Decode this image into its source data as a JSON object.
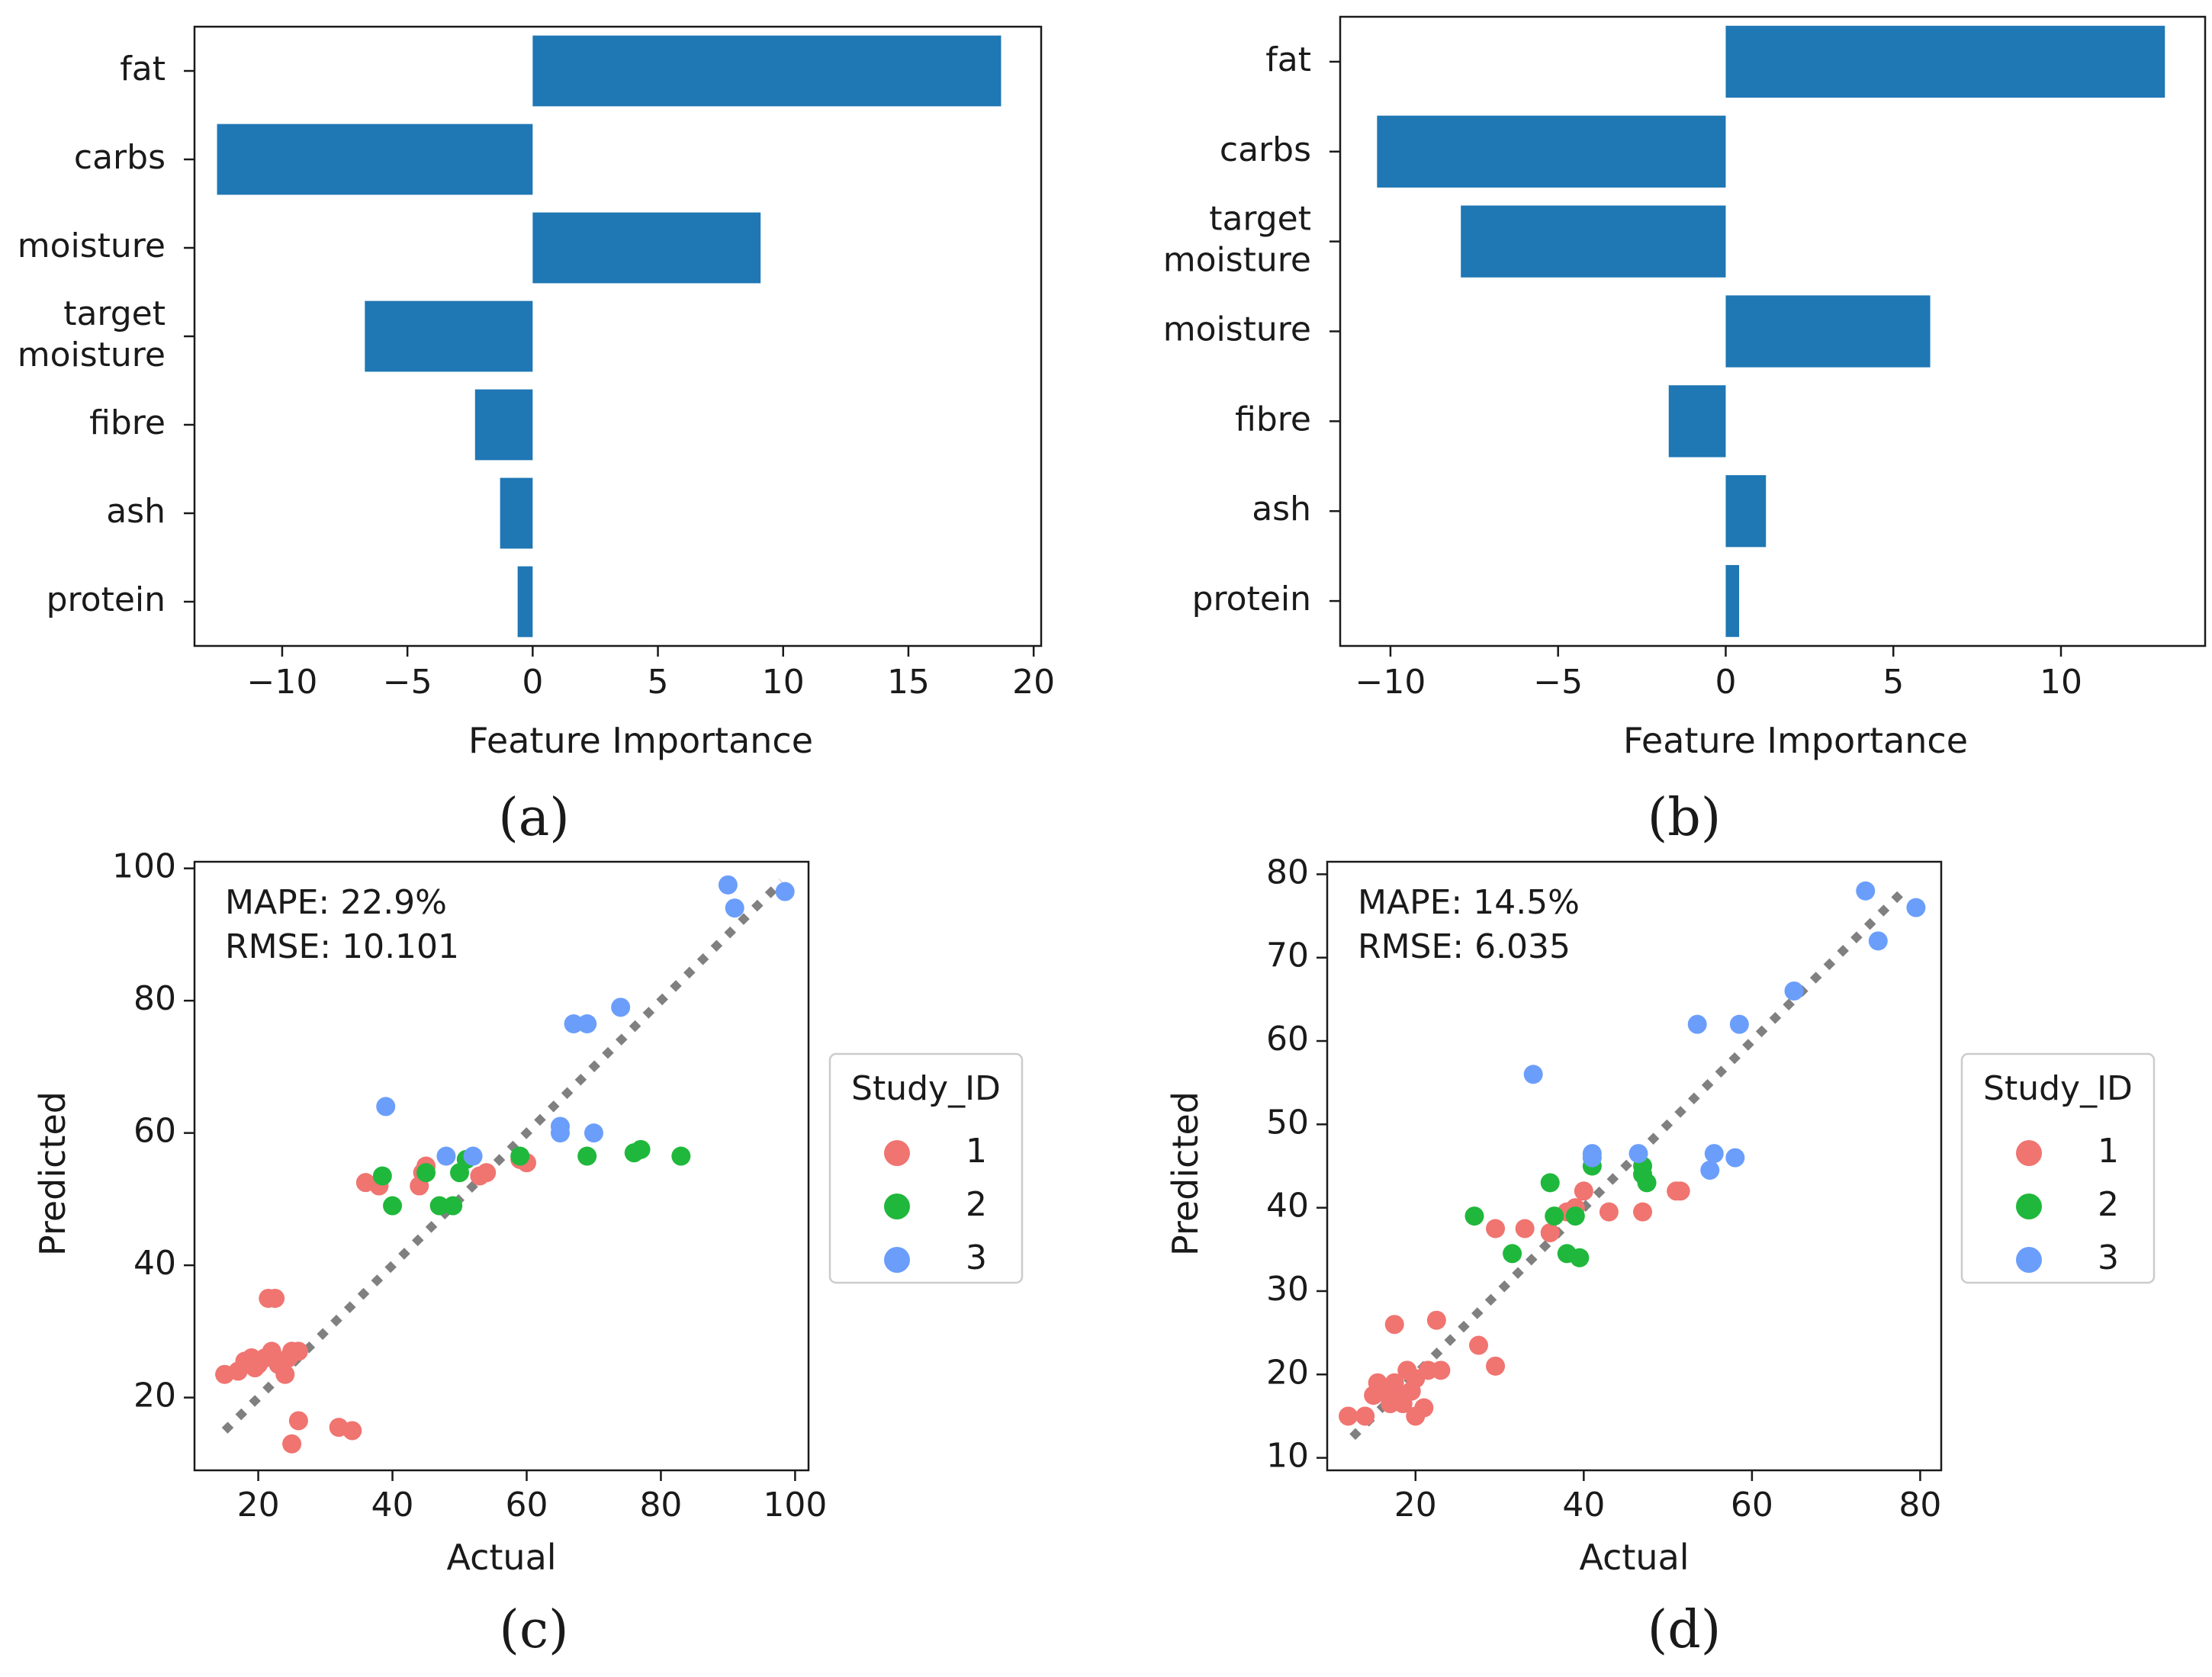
{
  "chart_data": [
    {
      "id": "a",
      "type": "bar",
      "orientation": "horizontal",
      "panel_label": "(a)",
      "xlabel": "Feature Importance",
      "ylabel": "",
      "xlim": [
        -13.5,
        20.3
      ],
      "xticks": [
        -10,
        -5,
        0,
        5,
        10,
        15,
        20
      ],
      "xtick_labels": [
        "−10",
        "−5",
        "0",
        "5",
        "10",
        "15",
        "20"
      ],
      "categories": [
        {
          "lines": [
            "fat"
          ],
          "value": 18.7
        },
        {
          "lines": [
            "carbs"
          ],
          "value": -12.6
        },
        {
          "lines": [
            "moisture"
          ],
          "value": 9.1
        },
        {
          "lines": [
            "target",
            "moisture"
          ],
          "value": -6.7
        },
        {
          "lines": [
            "fibre"
          ],
          "value": -2.3
        },
        {
          "lines": [
            "ash"
          ],
          "value": -1.3
        },
        {
          "lines": [
            "protein"
          ],
          "value": -0.6
        }
      ],
      "bar_color": "#1f77b4",
      "grid": false
    },
    {
      "id": "b",
      "type": "bar",
      "orientation": "horizontal",
      "panel_label": "(b)",
      "xlabel": "Feature Importance",
      "ylabel": "",
      "xlim": [
        -11.5,
        14.3
      ],
      "xticks": [
        -10,
        -5,
        0,
        5,
        10
      ],
      "xtick_labels": [
        "−10",
        "−5",
        "0",
        "5",
        "10"
      ],
      "categories": [
        {
          "lines": [
            "fat"
          ],
          "value": 13.1
        },
        {
          "lines": [
            "carbs"
          ],
          "value": -10.4
        },
        {
          "lines": [
            "target",
            "moisture"
          ],
          "value": -7.9
        },
        {
          "lines": [
            "moisture"
          ],
          "value": 6.1
        },
        {
          "lines": [
            "fibre"
          ],
          "value": -1.7
        },
        {
          "lines": [
            "ash"
          ],
          "value": 1.2
        },
        {
          "lines": [
            "protein"
          ],
          "value": 0.4
        }
      ],
      "bar_color": "#1f77b4",
      "grid": false
    },
    {
      "id": "c",
      "type": "scatter",
      "panel_label": "(c)",
      "xlabel": "Actual",
      "ylabel": "Predicted",
      "xlim": [
        10.5,
        102
      ],
      "ylim": [
        9,
        101
      ],
      "xticks": [
        20,
        40,
        60,
        80,
        100
      ],
      "xtick_labels": [
        "20",
        "40",
        "60",
        "80",
        "100"
      ],
      "yticks": [
        20,
        40,
        60,
        80,
        100
      ],
      "ytick_labels": [
        "20",
        "40",
        "60",
        "80",
        "100"
      ],
      "annotation": [
        "MAPE: 22.9%",
        "RMSE: 10.101"
      ],
      "legend": {
        "title": "Study_ID",
        "placement": "outside-right"
      },
      "reference_line": {
        "x": [
          15,
          98
        ],
        "y": [
          15,
          98
        ],
        "style": "dotted",
        "color": "#808080"
      },
      "series": [
        {
          "name": "1",
          "color": "#f07470",
          "points": [
            [
              15,
              23.5
            ],
            [
              17,
              24
            ],
            [
              18,
              25.5
            ],
            [
              19,
              26
            ],
            [
              19.5,
              24.5
            ],
            [
              20,
              25
            ],
            [
              21,
              26
            ],
            [
              21.5,
              35
            ],
            [
              22,
              27
            ],
            [
              22.5,
              35
            ],
            [
              23,
              25
            ],
            [
              24,
              23.5
            ],
            [
              24.5,
              26
            ],
            [
              25,
              27
            ],
            [
              25,
              13
            ],
            [
              26,
              16.5
            ],
            [
              26,
              27
            ],
            [
              32,
              15.5
            ],
            [
              34,
              15
            ],
            [
              36,
              52.5
            ],
            [
              38,
              52
            ],
            [
              44,
              52
            ],
            [
              44.5,
              54
            ],
            [
              45,
              55
            ],
            [
              53,
              53.5
            ],
            [
              54,
              54
            ],
            [
              59,
              56
            ],
            [
              60,
              55.5
            ]
          ]
        },
        {
          "name": "2",
          "color": "#1fb83c",
          "points": [
            [
              38.5,
              53.5
            ],
            [
              40,
              49
            ],
            [
              45,
              54
            ],
            [
              47,
              49
            ],
            [
              49,
              49
            ],
            [
              50,
              54
            ],
            [
              51,
              56
            ],
            [
              59,
              56.5
            ],
            [
              69,
              56.5
            ],
            [
              76,
              57
            ],
            [
              77,
              57.5
            ],
            [
              83,
              56.5
            ]
          ]
        },
        {
          "name": "3",
          "color": "#6b9efb",
          "points": [
            [
              39,
              64
            ],
            [
              48,
              56.5
            ],
            [
              52,
              56.5
            ],
            [
              65,
              60
            ],
            [
              65,
              61
            ],
            [
              67,
              76.5
            ],
            [
              69,
              76.5
            ],
            [
              70,
              60
            ],
            [
              74,
              79
            ],
            [
              90,
              97.5
            ],
            [
              91,
              94
            ],
            [
              98.5,
              96.5
            ]
          ]
        }
      ]
    },
    {
      "id": "d",
      "type": "scatter",
      "panel_label": "(d)",
      "xlabel": "Actual",
      "ylabel": "Predicted",
      "xlim": [
        9.5,
        82.5
      ],
      "ylim": [
        8.5,
        81.5
      ],
      "xticks": [
        20,
        40,
        60,
        80
      ],
      "xtick_labels": [
        "20",
        "40",
        "60",
        "80"
      ],
      "yticks": [
        10,
        20,
        30,
        40,
        50,
        60,
        70,
        80
      ],
      "ytick_labels": [
        "10",
        "20",
        "30",
        "40",
        "50",
        "60",
        "70",
        "80"
      ],
      "annotation": [
        "MAPE: 14.5%",
        "RMSE: 6.035"
      ],
      "legend": {
        "title": "Study_ID",
        "placement": "outside-right"
      },
      "reference_line": {
        "x": [
          12.5,
          78.5
        ],
        "y": [
          12.5,
          78.5
        ],
        "style": "dotted",
        "color": "#808080"
      },
      "series": [
        {
          "name": "1",
          "color": "#f07470",
          "points": [
            [
              12,
              15
            ],
            [
              14,
              15
            ],
            [
              15,
              17.5
            ],
            [
              15.5,
              19
            ],
            [
              16,
              18
            ],
            [
              17,
              16.5
            ],
            [
              17.5,
              26
            ],
            [
              17.5,
              19
            ],
            [
              18,
              17.5
            ],
            [
              18.5,
              16.5
            ],
            [
              19,
              20.5
            ],
            [
              19.5,
              18
            ],
            [
              20,
              15
            ],
            [
              20,
              19.5
            ],
            [
              21,
              16
            ],
            [
              21.5,
              20.5
            ],
            [
              22.5,
              26.5
            ],
            [
              23,
              20.5
            ],
            [
              27.5,
              23.5
            ],
            [
              29.5,
              21
            ],
            [
              29.5,
              37.5
            ],
            [
              33,
              37.5
            ],
            [
              36,
              37
            ],
            [
              38,
              39.5
            ],
            [
              39,
              40
            ],
            [
              40,
              42
            ],
            [
              43,
              39.5
            ],
            [
              47,
              39.5
            ],
            [
              51,
              42
            ],
            [
              51.5,
              42
            ]
          ]
        },
        {
          "name": "2",
          "color": "#1fb83c",
          "points": [
            [
              27,
              39
            ],
            [
              31.5,
              34.5
            ],
            [
              36,
              43
            ],
            [
              36.5,
              39
            ],
            [
              38,
              34.5
            ],
            [
              39,
              39
            ],
            [
              39.5,
              34
            ],
            [
              41,
              45
            ],
            [
              47,
              44
            ],
            [
              47,
              45
            ],
            [
              47.5,
              43
            ]
          ]
        },
        {
          "name": "3",
          "color": "#6b9efb",
          "points": [
            [
              34,
              56
            ],
            [
              41,
              46
            ],
            [
              41,
              46.5
            ],
            [
              46.5,
              46.5
            ],
            [
              53.5,
              62
            ],
            [
              55,
              44.5
            ],
            [
              55.5,
              46.5
            ],
            [
              58,
              46
            ],
            [
              58.5,
              62
            ],
            [
              65,
              66
            ],
            [
              73.5,
              78
            ],
            [
              75,
              72
            ],
            [
              79.5,
              76
            ]
          ]
        }
      ]
    }
  ]
}
